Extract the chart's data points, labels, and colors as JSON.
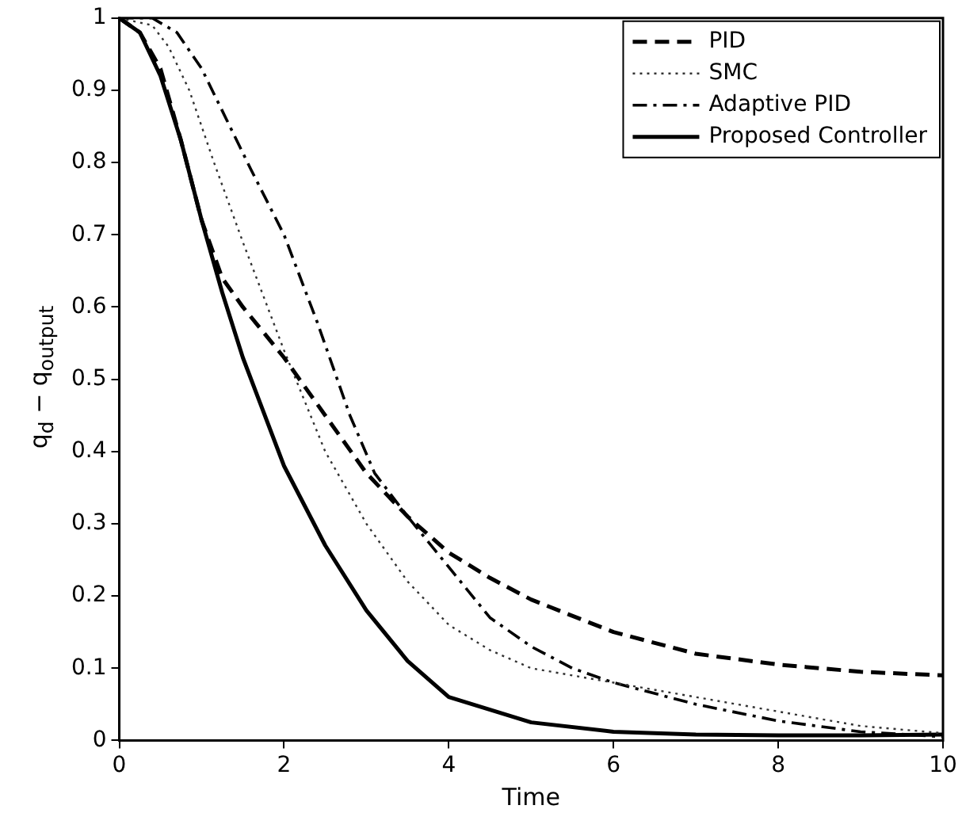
{
  "chart_data": {
    "type": "line",
    "xlabel": "Time",
    "ylabel": "q$_{d}$ − q$_{output}$",
    "xlim": [
      0,
      10
    ],
    "ylim": [
      0,
      1
    ],
    "xticks": [
      0,
      2,
      4,
      6,
      8,
      10
    ],
    "yticks": [
      0,
      0.1,
      0.2,
      0.3,
      0.4,
      0.5,
      0.6,
      0.7,
      0.8,
      0.9,
      1
    ],
    "grid": false,
    "legend": "top right",
    "marker": "none",
    "series": [
      {
        "name": "PID",
        "color": "#000000",
        "line_style": "dashed",
        "x": [
          0,
          0.25,
          0.5,
          0.75,
          1,
          1.25,
          1.5,
          2,
          2.5,
          3,
          3.5,
          4,
          4.5,
          5,
          6,
          7,
          8,
          9,
          10
        ],
        "values": [
          1,
          0.98,
          0.93,
          0.83,
          0.72,
          0.64,
          0.6,
          0.53,
          0.45,
          0.37,
          0.31,
          0.26,
          0.225,
          0.195,
          0.15,
          0.12,
          0.105,
          0.095,
          0.09
        ]
      },
      {
        "name": "SMC",
        "color": "#333333",
        "line_style": "dotted",
        "x": [
          0,
          0.4,
          0.6,
          0.85,
          1.15,
          1.5,
          2,
          2.5,
          3,
          3.5,
          4,
          4.5,
          5,
          6,
          7,
          8,
          9,
          10
        ],
        "values": [
          1,
          0.99,
          0.96,
          0.9,
          0.8,
          0.69,
          0.54,
          0.4,
          0.3,
          0.22,
          0.16,
          0.125,
          0.1,
          0.08,
          0.06,
          0.04,
          0.02,
          0.01
        ]
      },
      {
        "name": "Adaptive PID",
        "color": "#000000",
        "line_style": "dashdot",
        "x": [
          0,
          0.4,
          0.7,
          1,
          1.3,
          1.6,
          2,
          2.4,
          2.8,
          3.1,
          3.5,
          4,
          4.5,
          5,
          5.5,
          6,
          7,
          8,
          9,
          10
        ],
        "values": [
          1,
          1,
          0.98,
          0.93,
          0.86,
          0.79,
          0.7,
          0.58,
          0.45,
          0.37,
          0.31,
          0.24,
          0.17,
          0.13,
          0.1,
          0.08,
          0.05,
          0.027,
          0.012,
          0.005
        ]
      },
      {
        "name": "Proposed Controller",
        "color": "#000000",
        "line_style": "solid",
        "x": [
          0,
          0.25,
          0.5,
          0.75,
          1,
          1.25,
          1.5,
          2,
          2.5,
          3,
          3.5,
          4,
          5,
          6,
          7,
          8,
          9,
          10
        ],
        "values": [
          1,
          0.98,
          0.92,
          0.83,
          0.72,
          0.62,
          0.53,
          0.38,
          0.27,
          0.18,
          0.11,
          0.06,
          0.025,
          0.012,
          0.008,
          0.007,
          0.007,
          0.008
        ]
      }
    ]
  }
}
